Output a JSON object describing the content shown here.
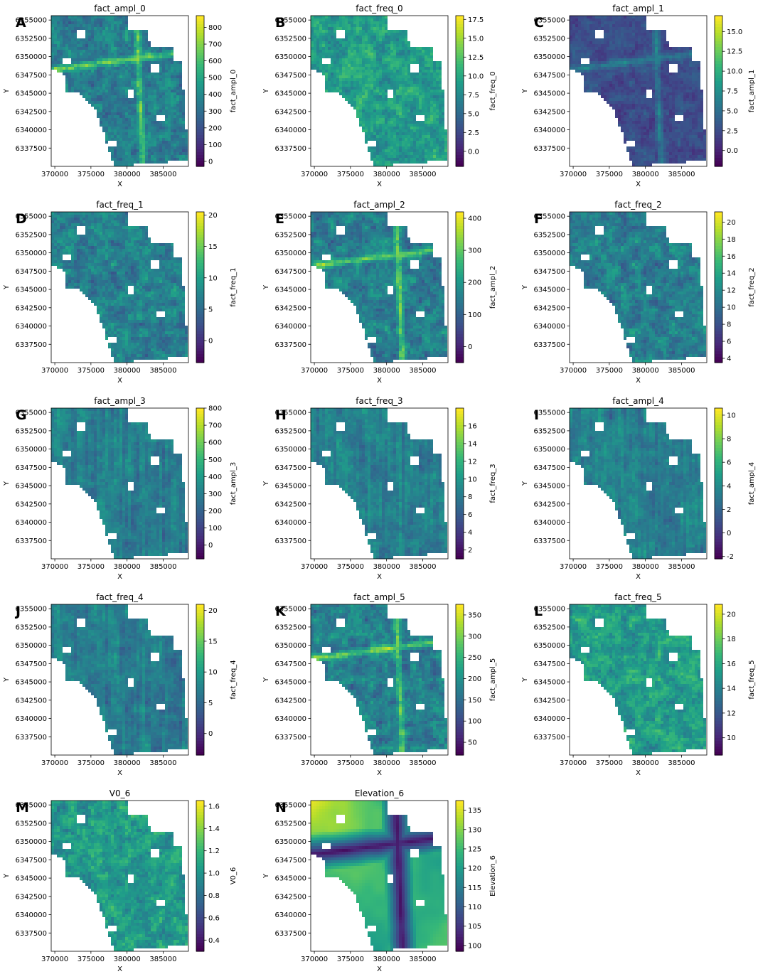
{
  "figure": {
    "colormap": "viridis",
    "colormap_stops": [
      "#440154",
      "#482878",
      "#3e4a89",
      "#31688e",
      "#26828e",
      "#1f9e89",
      "#35b779",
      "#6ece58",
      "#b5de2b",
      "#fde725"
    ],
    "map_background": "#ffffff"
  },
  "chart_data": [
    {
      "type": "heatmap",
      "letter": "A",
      "title": "fact_ampl_0",
      "xlabel": "X",
      "ylabel": "Y",
      "colorbar_label": "fact_ampl_0",
      "xlim": [
        369500,
        388500
      ],
      "ylim": [
        6335000,
        6355600
      ],
      "x_ticks": [
        "370000",
        "375000",
        "380000",
        "385000"
      ],
      "y_ticks": [
        "6355000",
        "6352500",
        "6350000",
        "6347500",
        "6345000",
        "6342500",
        "6340000",
        "6337500"
      ],
      "cbar_range": [
        -30,
        870
      ],
      "cbar_ticks": [
        "0",
        "100",
        "200",
        "300",
        "400",
        "500",
        "600",
        "700",
        "800"
      ]
    },
    {
      "type": "heatmap",
      "letter": "B",
      "title": "fact_freq_0",
      "xlabel": "X",
      "ylabel": "Y",
      "colorbar_label": "fact_freq_0",
      "xlim": [
        369500,
        388500
      ],
      "ylim": [
        6335000,
        6355600
      ],
      "x_ticks": [
        "370000",
        "375000",
        "380000",
        "385000"
      ],
      "y_ticks": [
        "6355000",
        "6352500",
        "6350000",
        "6347500",
        "6345000",
        "6342500",
        "6340000",
        "6337500"
      ],
      "cbar_range": [
        -2,
        18
      ],
      "cbar_ticks": [
        "0.0",
        "2.5",
        "5.0",
        "7.5",
        "10.0",
        "12.5",
        "15.0",
        "17.5"
      ]
    },
    {
      "type": "heatmap",
      "letter": "C",
      "title": "fact_ampl_1",
      "xlabel": "X",
      "ylabel": "Y",
      "colorbar_label": "fact_ampl_1",
      "xlim": [
        369500,
        388500
      ],
      "ylim": [
        6335000,
        6355600
      ],
      "x_ticks": [
        "370000",
        "375000",
        "380000",
        "385000"
      ],
      "y_ticks": [
        "6355000",
        "6352500",
        "6350000",
        "6347500",
        "6345000",
        "6342500",
        "6340000",
        "6337500"
      ],
      "cbar_range": [
        -2,
        17
      ],
      "cbar_ticks": [
        "0.0",
        "2.5",
        "5.0",
        "7.5",
        "10.0",
        "12.5",
        "15.0"
      ]
    },
    {
      "type": "heatmap",
      "letter": "D",
      "title": "fact_freq_1",
      "xlabel": "X",
      "ylabel": "Y",
      "colorbar_label": "fact_freq_1",
      "xlim": [
        369500,
        388500
      ],
      "ylim": [
        6335000,
        6355600
      ],
      "x_ticks": [
        "370000",
        "375000",
        "380000",
        "385000"
      ],
      "y_ticks": [
        "6355000",
        "6352500",
        "6350000",
        "6347500",
        "6345000",
        "6342500",
        "6340000",
        "6337500"
      ],
      "cbar_range": [
        -3.5,
        20.5
      ],
      "cbar_ticks": [
        "0",
        "5",
        "10",
        "15",
        "20"
      ]
    },
    {
      "type": "heatmap",
      "letter": "E",
      "title": "fact_ampl_2",
      "xlabel": "X",
      "ylabel": "Y",
      "colorbar_label": "fact_ampl_2",
      "xlim": [
        369500,
        388500
      ],
      "ylim": [
        6335000,
        6355600
      ],
      "x_ticks": [
        "370000",
        "375000",
        "380000",
        "385000"
      ],
      "y_ticks": [
        "6355000",
        "6352500",
        "6350000",
        "6347500",
        "6345000",
        "6342500",
        "6340000",
        "6337500"
      ],
      "cbar_range": [
        -50,
        420
      ],
      "cbar_ticks": [
        "0",
        "100",
        "200",
        "300",
        "400"
      ]
    },
    {
      "type": "heatmap",
      "letter": "F",
      "title": "fact_freq_2",
      "xlabel": "X",
      "ylabel": "Y",
      "colorbar_label": "fact_freq_2",
      "xlim": [
        369500,
        388500
      ],
      "ylim": [
        6335000,
        6355600
      ],
      "x_ticks": [
        "370000",
        "375000",
        "380000",
        "385000"
      ],
      "y_ticks": [
        "6355000",
        "6352500",
        "6350000",
        "6347500",
        "6345000",
        "6342500",
        "6340000",
        "6337500"
      ],
      "cbar_range": [
        3.5,
        21.2
      ],
      "cbar_ticks": [
        "4",
        "6",
        "8",
        "10",
        "12",
        "14",
        "16",
        "18",
        "20"
      ]
    },
    {
      "type": "heatmap",
      "letter": "G",
      "title": "fact_ampl_3",
      "xlabel": "X",
      "ylabel": "Y",
      "colorbar_label": "fact_ampl_3",
      "xlim": [
        369500,
        388500
      ],
      "ylim": [
        6335000,
        6355600
      ],
      "x_ticks": [
        "370000",
        "375000",
        "380000",
        "385000"
      ],
      "y_ticks": [
        "6355000",
        "6352500",
        "6350000",
        "6347500",
        "6345000",
        "6342500",
        "6340000",
        "6337500"
      ],
      "cbar_range": [
        -80,
        800
      ],
      "cbar_ticks": [
        "0",
        "100",
        "200",
        "300",
        "400",
        "500",
        "600",
        "700",
        "800"
      ]
    },
    {
      "type": "heatmap",
      "letter": "H",
      "title": "fact_freq_3",
      "xlabel": "X",
      "ylabel": "Y",
      "colorbar_label": "fact_freq_3",
      "xlim": [
        369500,
        388500
      ],
      "ylim": [
        6335000,
        6355600
      ],
      "x_ticks": [
        "370000",
        "375000",
        "380000",
        "385000"
      ],
      "y_ticks": [
        "6355000",
        "6352500",
        "6350000",
        "6347500",
        "6345000",
        "6342500",
        "6340000",
        "6337500"
      ],
      "cbar_range": [
        1,
        18
      ],
      "cbar_ticks": [
        "2",
        "4",
        "6",
        "8",
        "10",
        "12",
        "14",
        "16"
      ]
    },
    {
      "type": "heatmap",
      "letter": "I",
      "title": "fact_ampl_4",
      "xlabel": "X",
      "ylabel": "Y",
      "colorbar_label": "fact_ampl_4",
      "xlim": [
        369500,
        388500
      ],
      "ylim": [
        6335000,
        6355600
      ],
      "x_ticks": [
        "370000",
        "375000",
        "380000",
        "385000"
      ],
      "y_ticks": [
        "6355000",
        "6352500",
        "6350000",
        "6347500",
        "6345000",
        "6342500",
        "6340000",
        "6337500"
      ],
      "cbar_range": [
        -2.2,
        10.6
      ],
      "cbar_ticks": [
        "-2",
        "0",
        "2",
        "4",
        "6",
        "8",
        "10"
      ]
    },
    {
      "type": "heatmap",
      "letter": "J",
      "title": "fact_freq_4",
      "xlabel": "X",
      "ylabel": "Y",
      "colorbar_label": "fact_freq_4",
      "xlim": [
        369500,
        388500
      ],
      "ylim": [
        6335000,
        6355600
      ],
      "x_ticks": [
        "370000",
        "375000",
        "380000",
        "385000"
      ],
      "y_ticks": [
        "6355000",
        "6352500",
        "6350000",
        "6347500",
        "6345000",
        "6342500",
        "6340000",
        "6337500"
      ],
      "cbar_range": [
        -3.5,
        21
      ],
      "cbar_ticks": [
        "0",
        "5",
        "10",
        "15",
        "20"
      ]
    },
    {
      "type": "heatmap",
      "letter": "K",
      "title": "fact_ampl_5",
      "xlabel": "X",
      "ylabel": "Y",
      "colorbar_label": "fact_ampl_5",
      "xlim": [
        369500,
        388500
      ],
      "ylim": [
        6335000,
        6355600
      ],
      "x_ticks": [
        "370000",
        "375000",
        "380000",
        "385000"
      ],
      "y_ticks": [
        "6355000",
        "6352500",
        "6350000",
        "6347500",
        "6345000",
        "6342500",
        "6340000",
        "6337500"
      ],
      "cbar_range": [
        20,
        375
      ],
      "cbar_ticks": [
        "50",
        "100",
        "150",
        "200",
        "250",
        "300",
        "350"
      ]
    },
    {
      "type": "heatmap",
      "letter": "L",
      "title": "fact_freq_5",
      "xlabel": "X",
      "ylabel": "Y",
      "colorbar_label": "fact_freq_5",
      "xlim": [
        369500,
        388500
      ],
      "ylim": [
        6335000,
        6355600
      ],
      "x_ticks": [
        "370000",
        "375000",
        "380000",
        "385000"
      ],
      "y_ticks": [
        "6355000",
        "6352500",
        "6350000",
        "6347500",
        "6345000",
        "6342500",
        "6340000",
        "6337500"
      ],
      "cbar_range": [
        8.6,
        20.8
      ],
      "cbar_ticks": [
        "10",
        "12",
        "14",
        "16",
        "18",
        "20"
      ]
    },
    {
      "type": "heatmap",
      "letter": "M",
      "title": "V0_6",
      "xlabel": "X",
      "ylabel": "Y",
      "colorbar_label": "V0_6",
      "xlim": [
        369500,
        388500
      ],
      "ylim": [
        6335000,
        6355600
      ],
      "x_ticks": [
        "370000",
        "375000",
        "380000",
        "385000"
      ],
      "y_ticks": [
        "6355000",
        "6352500",
        "6350000",
        "6347500",
        "6345000",
        "6342500",
        "6340000",
        "6337500"
      ],
      "cbar_range": [
        0.3,
        1.65
      ],
      "cbar_ticks": [
        "0.4",
        "0.6",
        "0.8",
        "1.0",
        "1.2",
        "1.4",
        "1.6"
      ]
    },
    {
      "type": "heatmap",
      "letter": "N",
      "title": "Elevation_6",
      "xlabel": "X",
      "ylabel": "Y",
      "colorbar_label": "Elevation_6",
      "xlim": [
        369500,
        388500
      ],
      "ylim": [
        6335000,
        6355600
      ],
      "x_ticks": [
        "370000",
        "375000",
        "380000",
        "385000"
      ],
      "y_ticks": [
        "6355000",
        "6352500",
        "6350000",
        "6347500",
        "6345000",
        "6342500",
        "6340000",
        "6337500"
      ],
      "cbar_range": [
        98.5,
        137.5
      ],
      "cbar_ticks": [
        "100",
        "105",
        "110",
        "115",
        "120",
        "125",
        "130",
        "135"
      ]
    }
  ]
}
